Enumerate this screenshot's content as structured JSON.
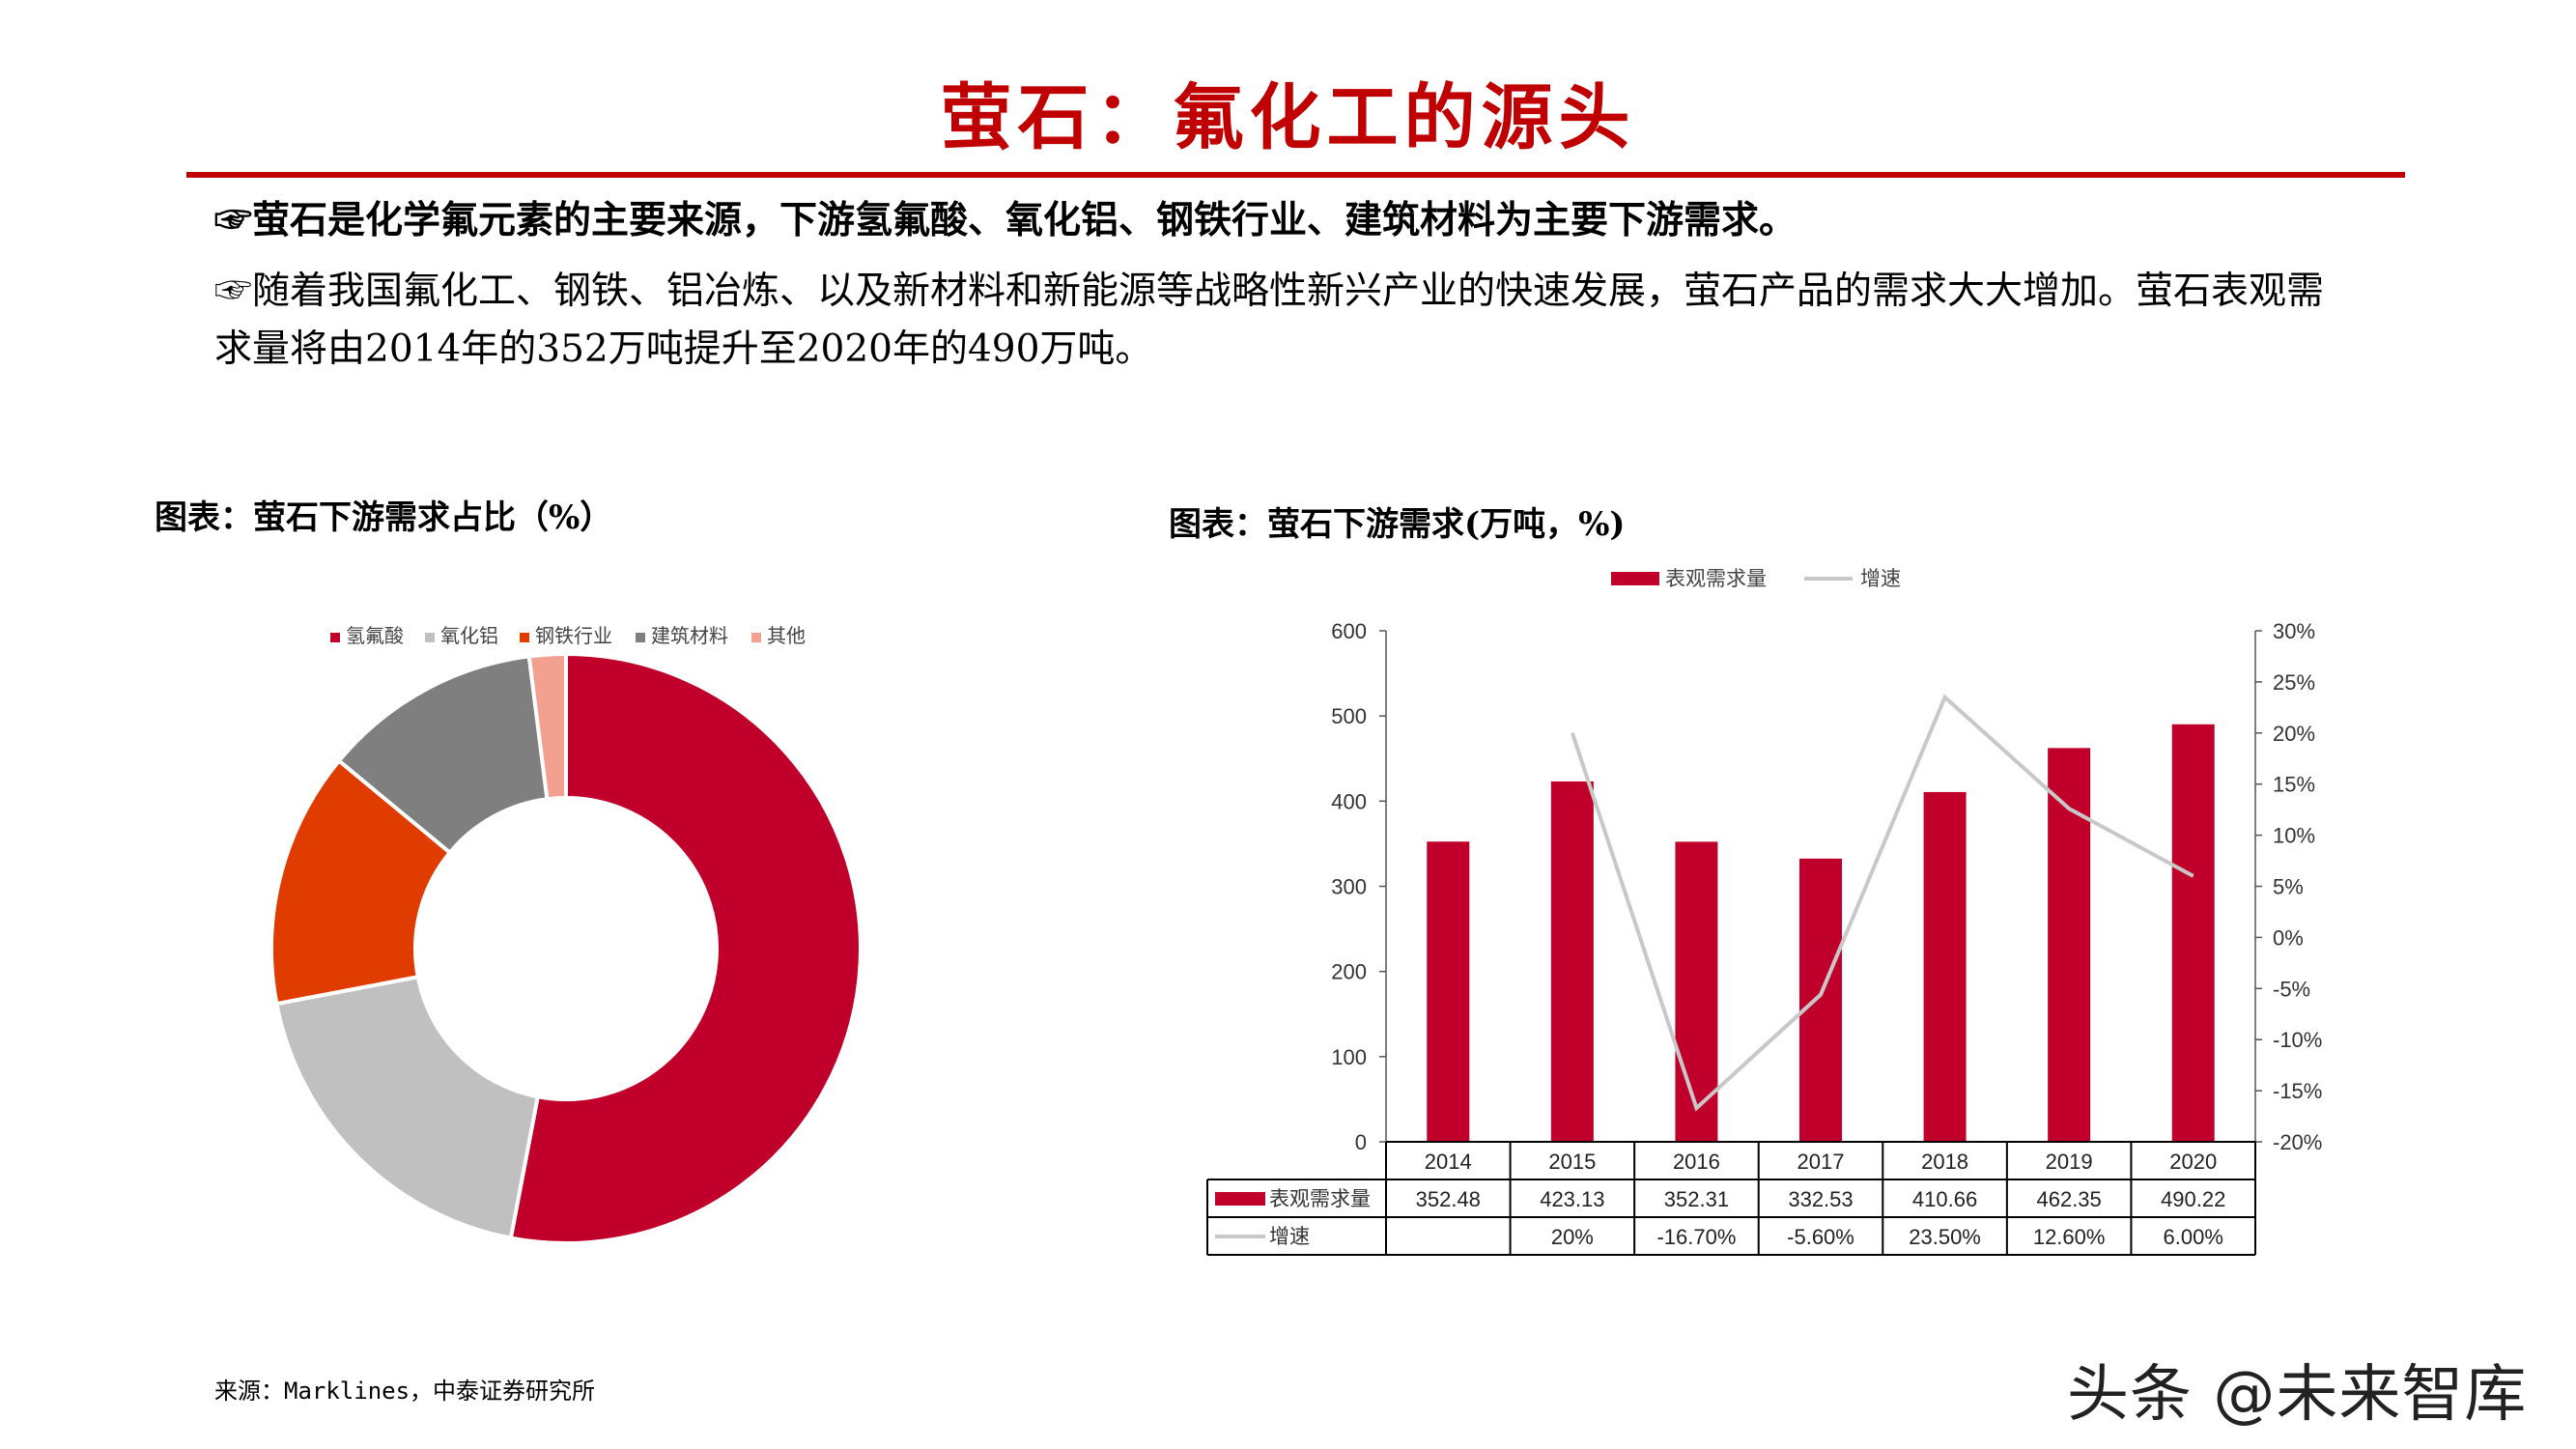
{
  "title": "萤石：氟化工的源头",
  "bullets": [
    "☞萤石是化学氟元素的主要来源，下游氢氟酸、氧化铝、钢铁行业、建筑材料为主要下游需求。",
    "☞随着我国氟化工、钢铁、铝冶炼、以及新材料和新能源等战略性新兴产业的快速发展，萤石产品的需求大大增加。萤石表观需求量将由2014年的352万吨提升至2020年的490万吨。"
  ],
  "source": "来源：Marklines，中泰证券研究所",
  "watermark": "头条 @未来智库",
  "chart_data": [
    {
      "type": "pie",
      "title": "图表：萤石下游需求占比（%）",
      "legend_position": "top",
      "donut": true,
      "categories": [
        "氢氟酸",
        "氧化铝",
        "钢铁行业",
        "建筑材料",
        "其他"
      ],
      "values": [
        53,
        19,
        14,
        12,
        2
      ],
      "colors": [
        "#c0002a",
        "#c0c0c0",
        "#e03c00",
        "#7f7f7f",
        "#f4a090"
      ]
    },
    {
      "type": "bar",
      "title": "图表：萤石下游需求(万吨，%)",
      "legend_position": "top",
      "categories": [
        "2014",
        "2015",
        "2016",
        "2017",
        "2018",
        "2019",
        "2020"
      ],
      "series": [
        {
          "name": "表观需求量",
          "type": "bar",
          "axis": "left",
          "values": [
            352.48,
            423.13,
            352.31,
            332.53,
            410.66,
            462.35,
            490.22
          ],
          "labels": [
            "352.48",
            "423.13",
            "352.31",
            "332.53",
            "410.66",
            "462.35",
            "490.22"
          ],
          "color": "#c0002a"
        },
        {
          "name": "增速",
          "type": "line",
          "axis": "right",
          "values": [
            null,
            20,
            -16.7,
            -5.6,
            23.5,
            12.6,
            6.0
          ],
          "labels": [
            "",
            "20%",
            "-16.70%",
            "-5.60%",
            "23.50%",
            "12.60%",
            "6.00%"
          ],
          "color": "#c8c8c8"
        }
      ],
      "ylim": [
        0,
        600
      ],
      "yticks": [
        "0",
        "100",
        "200",
        "300",
        "400",
        "500",
        "600"
      ],
      "y2lim": [
        -20,
        30
      ],
      "y2ticks": [
        "-20%",
        "-15%",
        "-10%",
        "-5%",
        "0%",
        "5%",
        "10%",
        "15%",
        "20%",
        "25%",
        "30%"
      ],
      "data_table": true,
      "grid": false
    }
  ]
}
